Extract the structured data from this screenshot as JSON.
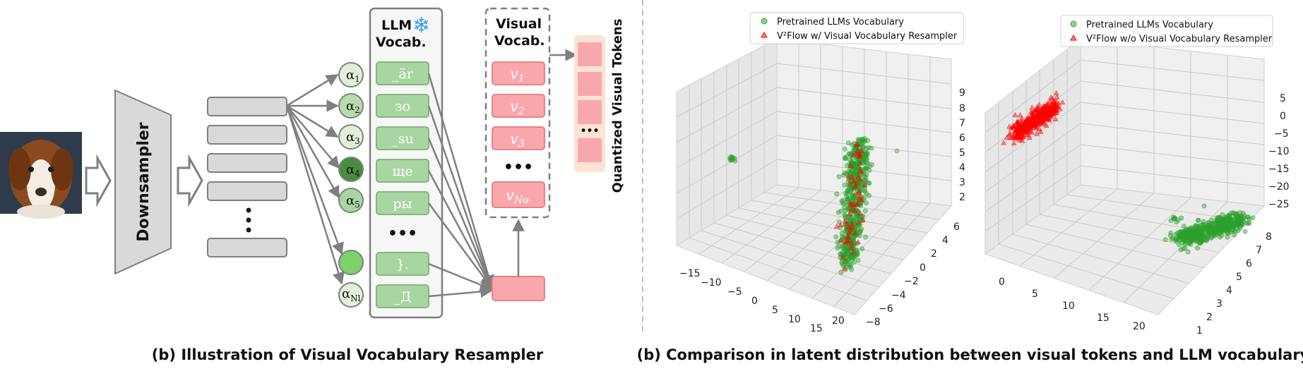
{
  "left_panel": {
    "caption": "(b) Illustration of Visual Vocabulary Resampler",
    "downsampler_label": "Downsampler",
    "llm_vocab_title_1": "LLM",
    "llm_vocab_title_2": "Vocab.",
    "llm_vocab_items": [
      "_är",
      "зо",
      "_su",
      "ще",
      "ры",
      "•••",
      "}.",
      "_Д"
    ],
    "visual_vocab_title_1": "Visual",
    "visual_vocab_title_2": "Vocab.",
    "visual_vocab_items": [
      {
        "base": "v",
        "sub": "1"
      },
      {
        "base": "v",
        "sub": "2"
      },
      {
        "base": "v",
        "sub": "3"
      },
      {
        "base": "•••",
        "sub": ""
      },
      {
        "base": "v",
        "sub": "No"
      }
    ],
    "alpha_labels": [
      {
        "base": "α",
        "sub": "1"
      },
      {
        "base": "α",
        "sub": "2"
      },
      {
        "base": "α",
        "sub": "3"
      },
      {
        "base": "α",
        "sub": "4"
      },
      {
        "base": "α",
        "sub": "5"
      },
      {
        "base": "",
        "sub": ""
      },
      {
        "base": "α",
        "sub": "Nl"
      }
    ],
    "quantized_label": "Quantized Visual Tokens",
    "quantized_dots": "•••",
    "snowflake": "❄",
    "colors": {
      "green_fill": "#a8d5a2",
      "green_stroke": "#82b97b",
      "pink_fill": "#f8a8ad",
      "pink_stroke": "#ef7f86",
      "gray_fill": "#d9d9d9",
      "gray_stroke": "#7f7f7f"
    }
  },
  "right_panel": {
    "caption": "(b) Comparison  in latent distribution between visual tokens and LLM vocabulary"
  },
  "chart_data": [
    {
      "type": "scatter",
      "title": "",
      "legend": [
        "Pretrained LLMs Vocabulary",
        "V²Flow w/ Visual Vocabulary Resampler"
      ],
      "legend_placement": "top",
      "x_ticks": [
        "−15",
        "−10",
        "−5",
        "0",
        "5",
        "10",
        "15",
        "20"
      ],
      "y_ticks": [
        "6",
        "4",
        "2",
        "0",
        "−2",
        "−4",
        "−6",
        "−8"
      ],
      "z_ticks": [
        "9",
        "8",
        "7",
        "6",
        "5",
        "4",
        "3",
        "2"
      ],
      "series": [
        {
          "name": "Pretrained LLMs Vocabulary",
          "color": "#2ca02c",
          "marker": "circle"
        },
        {
          "name": "V²Flow w/ Visual Vocabulary Resampler",
          "color": "#ff0000",
          "marker": "triangle"
        }
      ]
    },
    {
      "type": "scatter",
      "title": "",
      "legend": [
        "Pretrained LLMs Vocabulary",
        "V²Flow w/o Visual Vocabulary Resampler"
      ],
      "legend_placement": "top",
      "x_ticks": [
        "0",
        "5",
        "10",
        "15",
        "20"
      ],
      "y_ticks": [
        "8",
        "7",
        "6",
        "5",
        "4",
        "3",
        "2",
        "1"
      ],
      "z_ticks": [
        "5",
        "0",
        "−5",
        "−10",
        "−15",
        "−20",
        "−25"
      ],
      "series": [
        {
          "name": "Pretrained LLMs Vocabulary",
          "color": "#2ca02c",
          "marker": "circle"
        },
        {
          "name": "V²Flow w/o Visual Vocabulary Resampler",
          "color": "#ff0000",
          "marker": "triangle"
        }
      ]
    }
  ]
}
